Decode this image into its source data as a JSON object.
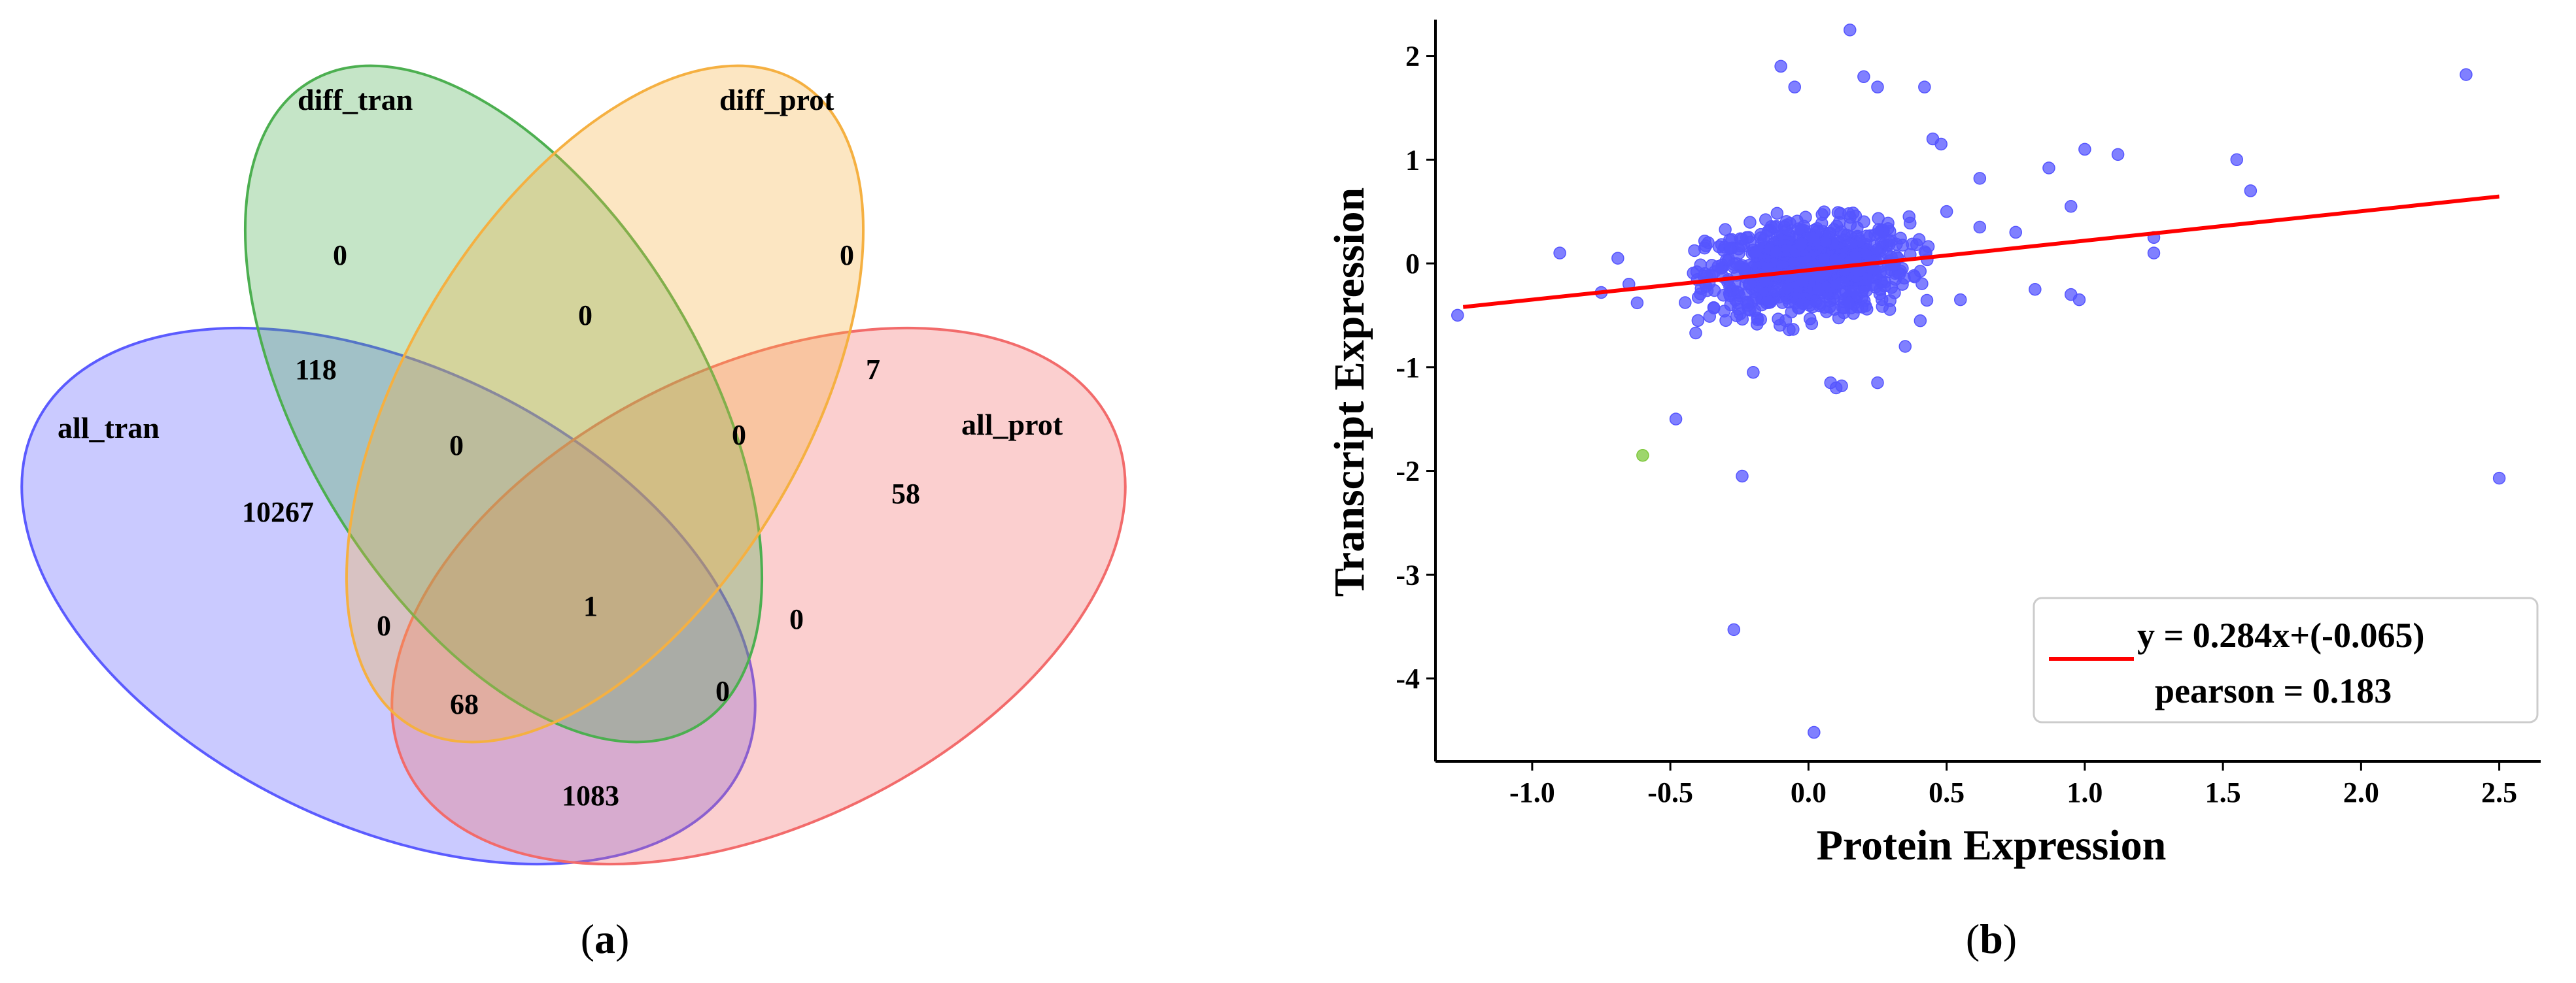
{
  "panels": [
    {
      "id": "a",
      "caption_open": "(",
      "caption_letter": "a",
      "caption_close": ")"
    },
    {
      "id": "b",
      "caption_open": "(",
      "caption_letter": "b",
      "caption_close": ")"
    }
  ],
  "chart_data": [
    {
      "type": "venn",
      "sets": [
        {
          "name": "diff_tran",
          "color": "#4caf50"
        },
        {
          "name": "diff_prot",
          "color": "#f5b041"
        },
        {
          "name": "all_tran",
          "color": "#5b5bff"
        },
        {
          "name": "all_prot",
          "color": "#f26b6b"
        }
      ],
      "regions": {
        "diff_tran_only": "0",
        "diff_prot_only": "0",
        "diff_tran_diff_prot": "0",
        "all_tran_diff_tran": "118",
        "diff_prot_all_prot": "7",
        "all_tran_diff_tran_diff_prot": "0",
        "diff_tran_diff_prot_all_prot": "0",
        "all_tran_only": "10267",
        "all_prot_only": "58",
        "all_four": "1",
        "all_tran_diff_prot": "0",
        "diff_tran_all_prot": "0",
        "all_tran_diff_prot_all_prot": "68",
        "all_tran_diff_tran_all_prot": "0",
        "all_tran_all_prot": "1083"
      }
    },
    {
      "type": "scatter",
      "xlabel": "Protein Expression",
      "ylabel": "Transcript Expression",
      "xlim": [
        -1.35,
        2.65
      ],
      "ylim": [
        -4.8,
        2.35
      ],
      "xticks": [
        -1.0,
        -0.5,
        0.0,
        0.5,
        1.0,
        1.5,
        2.0,
        2.5
      ],
      "xtick_labels": [
        "-1.0",
        "-0.5",
        "0.0",
        "0.5",
        "1.0",
        "1.5",
        "2.0",
        "2.5"
      ],
      "yticks": [
        2,
        1,
        0,
        -1,
        -2,
        -3,
        -4
      ],
      "ytick_labels": [
        "2",
        "1",
        "0",
        "-1",
        "-2",
        "-3",
        "-4"
      ],
      "point_color": "#5555ff",
      "highlight_color": "#7ec83c",
      "fit_color": "#ff0000",
      "fit": {
        "slope": 0.284,
        "intercept": -0.065,
        "x_range": [
          -1.25,
          2.5
        ]
      },
      "legend": {
        "line1": "y = 0.284x+(-0.065)",
        "line2": "pearson = 0.183",
        "position": "lower-right"
      },
      "cluster": {
        "count": 900,
        "x_center": 0.0,
        "x_sd": 0.18,
        "y_center": -0.05,
        "y_sd": 0.22
      },
      "outliers": [
        [
          0.15,
          2.25
        ],
        [
          -0.1,
          1.9
        ],
        [
          -0.05,
          1.7
        ],
        [
          0.2,
          1.8
        ],
        [
          0.25,
          1.7
        ],
        [
          0.42,
          1.7
        ],
        [
          0.45,
          1.2
        ],
        [
          0.48,
          1.15
        ],
        [
          2.38,
          1.82
        ],
        [
          0.62,
          0.82
        ],
        [
          1.0,
          1.1
        ],
        [
          1.12,
          1.05
        ],
        [
          1.55,
          1.0
        ],
        [
          1.6,
          0.7
        ],
        [
          0.87,
          0.92
        ],
        [
          0.95,
          0.55
        ],
        [
          -0.9,
          0.1
        ],
        [
          -0.69,
          0.05
        ],
        [
          -1.27,
          -0.5
        ],
        [
          -0.62,
          -0.38
        ],
        [
          -0.75,
          -0.28
        ],
        [
          -0.4,
          -0.55
        ],
        [
          -0.48,
          -1.5
        ],
        [
          -0.2,
          -1.05
        ],
        [
          -0.24,
          -2.05
        ],
        [
          -0.27,
          -3.53
        ],
        [
          0.02,
          -4.52
        ],
        [
          2.5,
          -2.07
        ],
        [
          0.08,
          -1.15
        ],
        [
          0.12,
          -1.18
        ],
        [
          0.1,
          -1.2
        ],
        [
          0.25,
          -1.15
        ],
        [
          0.35,
          -0.8
        ],
        [
          0.55,
          -0.35
        ],
        [
          0.75,
          0.3
        ],
        [
          0.95,
          -0.3
        ],
        [
          0.98,
          -0.35
        ],
        [
          1.25,
          0.25
        ],
        [
          1.25,
          0.1
        ],
        [
          0.82,
          -0.25
        ],
        [
          -0.65,
          -0.2
        ],
        [
          0.62,
          0.35
        ],
        [
          0.5,
          0.5
        ]
      ],
      "highlight_points": [
        [
          -0.6,
          -1.85
        ]
      ]
    }
  ]
}
